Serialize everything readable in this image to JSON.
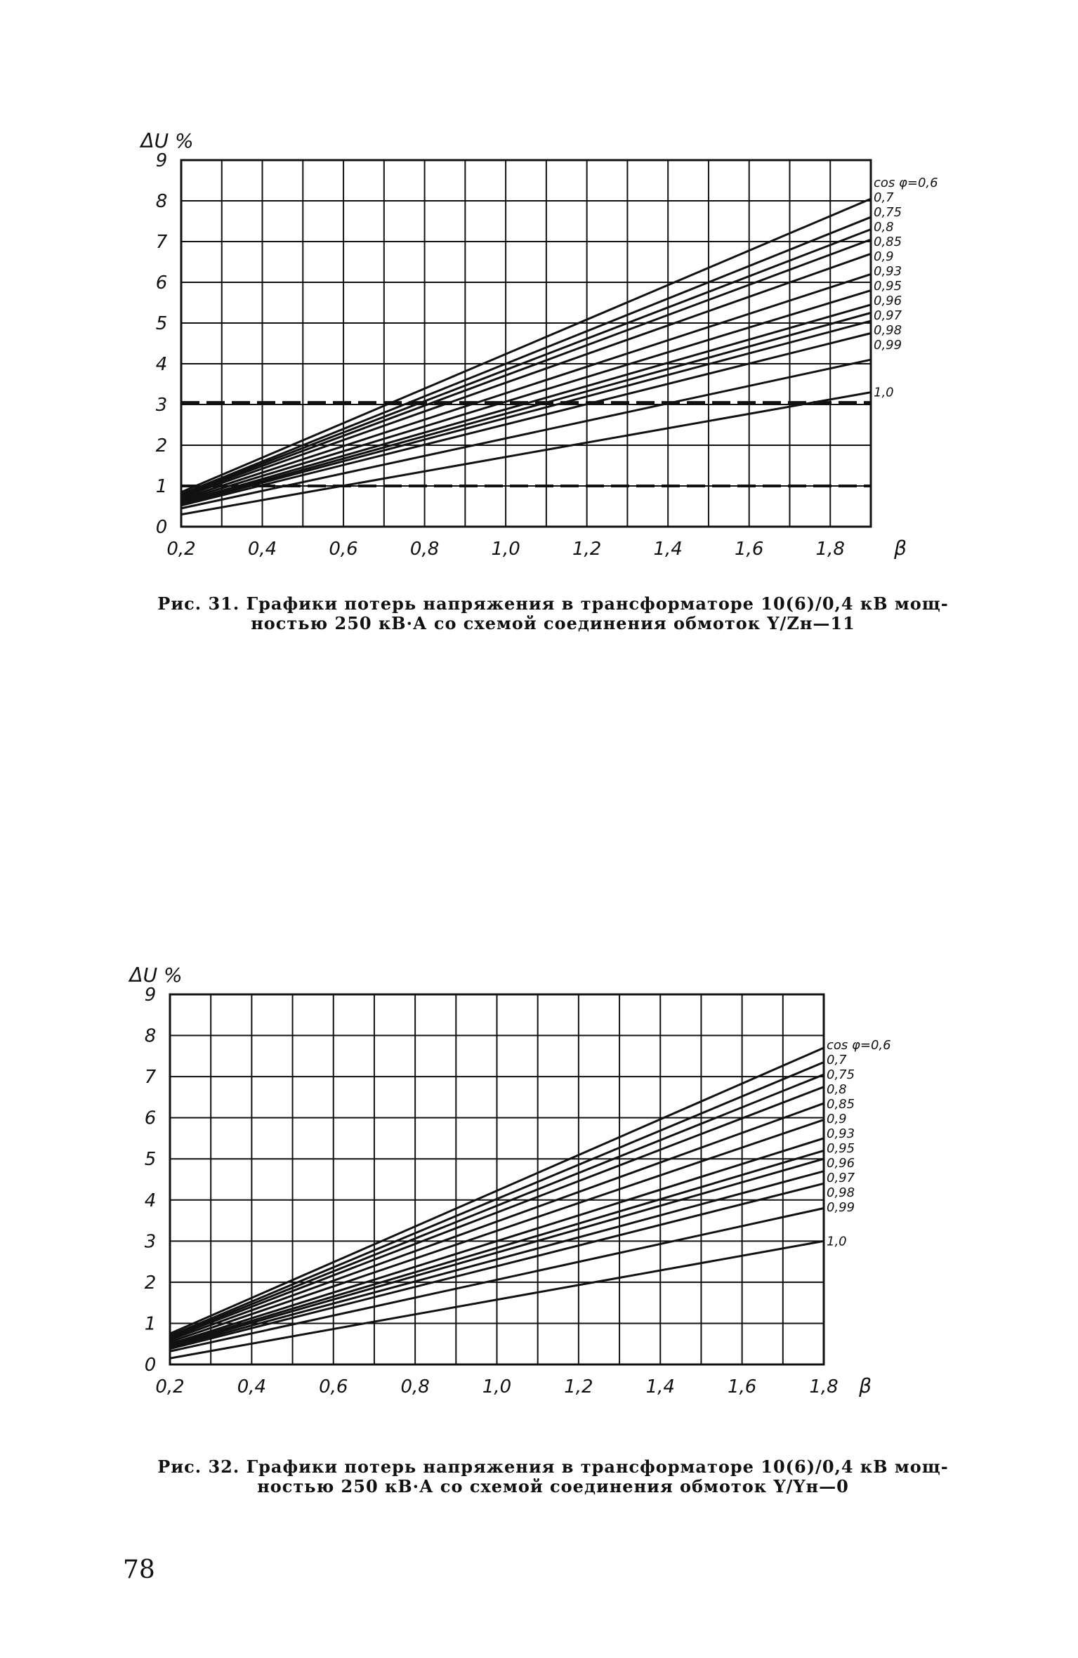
{
  "chart_data": [
    {
      "type": "line",
      "ylabel": "ΔU %",
      "xlabel": "β",
      "xlim": [
        0.2,
        1.9
      ],
      "ylim": [
        0,
        9
      ],
      "x_ticks": [
        "0,2",
        "0,4",
        "0,6",
        "0,8",
        "1,0",
        "1,2",
        "1,4",
        "1,6",
        "1,8"
      ],
      "y_ticks": [
        "0",
        "1",
        "2",
        "3",
        "4",
        "5",
        "6",
        "7",
        "8",
        "9"
      ],
      "grid": true,
      "x": [
        0.2,
        1.9
      ],
      "series": [
        {
          "name": "cos φ=0,6",
          "values": [
            0.85,
            8.05
          ]
        },
        {
          "name": "0,7",
          "values": [
            0.8,
            7.6
          ]
        },
        {
          "name": "0,75",
          "values": [
            0.78,
            7.3
          ]
        },
        {
          "name": "0,8",
          "values": [
            0.75,
            7.05
          ]
        },
        {
          "name": "0,85",
          "values": [
            0.72,
            6.7
          ]
        },
        {
          "name": "0,9",
          "values": [
            0.68,
            6.2
          ]
        },
        {
          "name": "0,93",
          "values": [
            0.64,
            5.8
          ]
        },
        {
          "name": "0,95",
          "values": [
            0.6,
            5.45
          ]
        },
        {
          "name": "0,96",
          "values": [
            0.57,
            5.25
          ]
        },
        {
          "name": "0,97",
          "values": [
            0.55,
            5.05
          ]
        },
        {
          "name": "0,98",
          "values": [
            0.52,
            4.75
          ]
        },
        {
          "name": "0,99",
          "values": [
            0.45,
            4.1
          ]
        },
        {
          "name": "1,0",
          "values": [
            0.3,
            3.3
          ]
        }
      ],
      "annotations": [
        {
          "type": "hline",
          "y": 3.05
        },
        {
          "type": "hline",
          "y": 1.0
        }
      ]
    },
    {
      "type": "line",
      "ylabel": "ΔU %",
      "xlabel": "β",
      "xlim": [
        0.2,
        1.8
      ],
      "ylim": [
        0,
        9
      ],
      "x_ticks": [
        "0,2",
        "0,4",
        "0,6",
        "0,8",
        "1,0",
        "1,2",
        "1,4",
        "1,6",
        "1,8"
      ],
      "y_ticks": [
        "0",
        "1",
        "2",
        "3",
        "4",
        "5",
        "6",
        "7",
        "8",
        "9"
      ],
      "grid": true,
      "x": [
        0.2,
        1.8
      ],
      "series": [
        {
          "name": "cos φ=0,6",
          "values": [
            0.75,
            7.7
          ]
        },
        {
          "name": "0,7",
          "values": [
            0.7,
            7.35
          ]
        },
        {
          "name": "0,75",
          "values": [
            0.67,
            7.05
          ]
        },
        {
          "name": "0,8",
          "values": [
            0.64,
            6.75
          ]
        },
        {
          "name": "0,85",
          "values": [
            0.6,
            6.35
          ]
        },
        {
          "name": "0,9",
          "values": [
            0.55,
            5.95
          ]
        },
        {
          "name": "0,93",
          "values": [
            0.5,
            5.5
          ]
        },
        {
          "name": "0,95",
          "values": [
            0.47,
            5.2
          ]
        },
        {
          "name": "0,96",
          "values": [
            0.44,
            5.0
          ]
        },
        {
          "name": "0,97",
          "values": [
            0.41,
            4.7
          ]
        },
        {
          "name": "0,98",
          "values": [
            0.38,
            4.4
          ]
        },
        {
          "name": "0,99",
          "values": [
            0.32,
            3.8
          ]
        },
        {
          "name": "1,0",
          "values": [
            0.15,
            3.0
          ]
        }
      ]
    }
  ],
  "captions": {
    "fig31_line1": "Рис. 31. Графики потерь напряжения в трансформаторе 10(6)/0,4 кВ мощ-",
    "fig31_line2": "ностью 250 кВ·А со схемой соединения обмоток Y/Zн—11",
    "fig32_line1": "Рис. 32. Графики потерь напряжения в трансформаторе 10(6)/0,4 кВ мощ-",
    "fig32_line2": "ностью 250 кВ·А со схемой соединения обмоток Y/Yн—0"
  },
  "page_number": "78"
}
